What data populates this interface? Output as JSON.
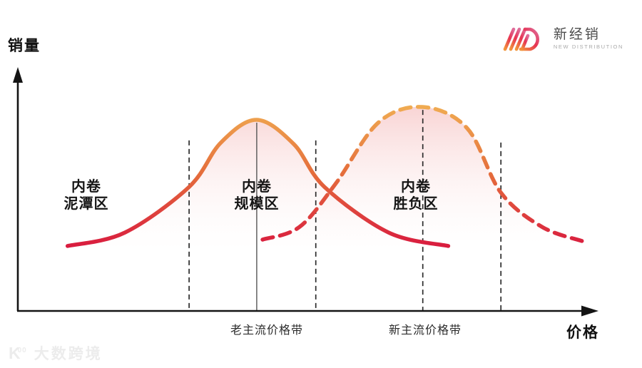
{
  "page": {
    "background": "#ffffff"
  },
  "logo": {
    "brand_cn": "新经销",
    "brand_en": "NEW DISTRIBUTION",
    "grad_start": "#F2953B",
    "grad_mid": "#E73352",
    "grad_end": "#DE6E9C"
  },
  "watermark": {
    "mark": "K",
    "mark_sup": "00",
    "label": "大数跨境"
  },
  "chart_data": {
    "type": "area",
    "title": "",
    "xlabel": "价格",
    "ylabel": "销量",
    "axes": {
      "numeric_ticks": false,
      "grid": false
    },
    "series": [
      {
        "name": "solid_curve",
        "style": "solid",
        "peak_label": "老主流价格带",
        "points": [
          [
            0.086,
            0.34
          ],
          [
            0.185,
            0.41
          ],
          [
            0.296,
            0.649
          ],
          [
            0.351,
            0.881
          ],
          [
            0.413,
            1.0
          ],
          [
            0.477,
            0.873
          ],
          [
            0.53,
            0.649
          ],
          [
            0.641,
            0.41
          ],
          [
            0.744,
            0.34
          ]
        ]
      },
      {
        "name": "dashed_curve",
        "style": "dashed",
        "peak_label": "新主流价格带",
        "points": [
          [
            0.423,
            0.373
          ],
          [
            0.487,
            0.44
          ],
          [
            0.549,
            0.664
          ],
          [
            0.623,
            0.985
          ],
          [
            0.7,
            1.067
          ],
          [
            0.777,
            0.955
          ],
          [
            0.835,
            0.619
          ],
          [
            0.906,
            0.44
          ],
          [
            0.975,
            0.366
          ]
        ]
      }
    ],
    "zones": [
      {
        "label": "内卷\n泥潭区",
        "x_range": [
          0.0,
          0.296
        ]
      },
      {
        "label": "内卷\n规模区",
        "x_range": [
          0.296,
          0.515
        ]
      },
      {
        "label": "内卷\n胜负区",
        "x_range": [
          0.515,
          0.835
        ]
      }
    ],
    "markers": [
      {
        "label": "老主流价格带",
        "x": 0.413,
        "top": 0.985,
        "style": "solid"
      },
      {
        "label": "新主流价格带",
        "x": 0.7,
        "top": 1.052,
        "style": "dashed"
      }
    ],
    "boundaries": [
      {
        "x": 0.296,
        "top": 0.892,
        "style": "dashed"
      },
      {
        "x": 0.515,
        "top": 0.892,
        "style": "dashed"
      },
      {
        "x": 0.835,
        "top": 0.881,
        "style": "dashed"
      }
    ],
    "colors": {
      "curve_gradient_top": "#F0AC52",
      "curve_gradient_mid": "#E5703C",
      "curve_gradient_bottom": "#D8173F",
      "area_fill_top": "#F4B8B8",
      "axis": "#141414",
      "guide_line": "#2b2b2b"
    }
  }
}
